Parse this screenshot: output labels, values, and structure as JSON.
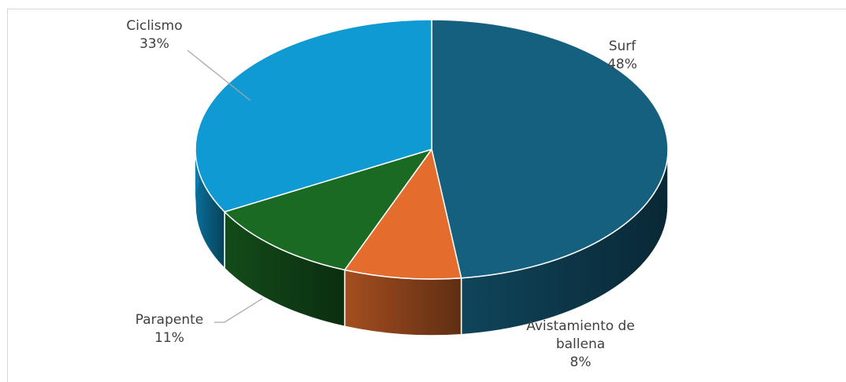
{
  "chart_data": {
    "type": "pie",
    "style": "3d",
    "title": "",
    "legend": "none",
    "slices": [
      {
        "category": [
          "Surf"
        ],
        "value": 48,
        "label": "48%",
        "color": "#16607f"
      },
      {
        "category": [
          "Avistamiento de",
          "ballena"
        ],
        "value": 8,
        "label": "8%",
        "color": "#e46d2d"
      },
      {
        "category": [
          "Parapente"
        ],
        "value": 11,
        "label": "11%",
        "color": "#1a6a24"
      },
      {
        "category": [
          "Ciclismo"
        ],
        "value": 33,
        "label": "33%",
        "color": "#0f9ad4"
      }
    ]
  }
}
